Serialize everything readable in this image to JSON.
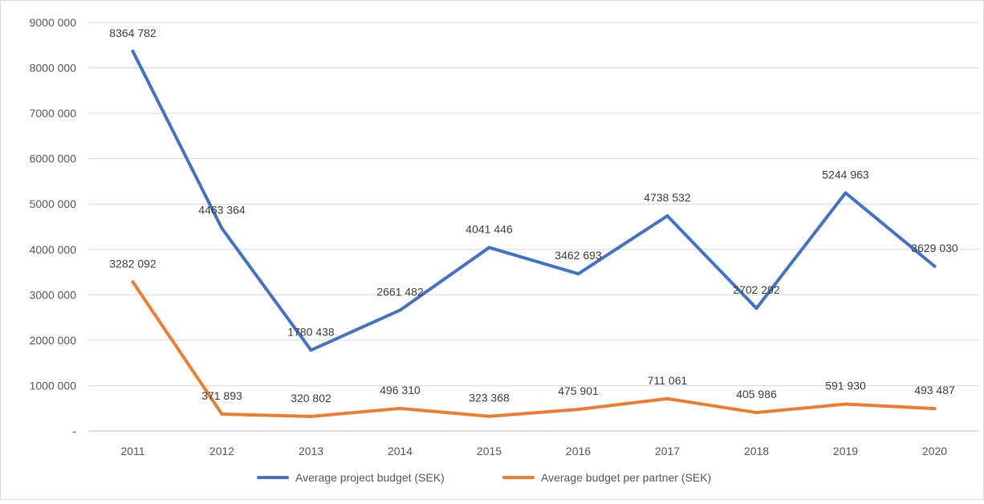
{
  "chart_data": {
    "type": "line",
    "title": "",
    "xlabel": "",
    "ylabel": "",
    "categories": [
      "2011",
      "2012",
      "2013",
      "2014",
      "2015",
      "2016",
      "2017",
      "2018",
      "2019",
      "2020"
    ],
    "ylim": [
      0,
      9000000
    ],
    "y_tick_labels": [
      "-",
      "1000 000",
      "2000 000",
      "3000 000",
      "4000 000",
      "5000 000",
      "6000 000",
      "7000 000",
      "8000 000",
      "9000 000"
    ],
    "grid": "horizontal",
    "legend_position": "bottom",
    "series": [
      {
        "name": "Average project budget (SEK)",
        "color": "#4472C4",
        "values": [
          8364782,
          4463364,
          1780438,
          2661482,
          4041446,
          3462693,
          4738532,
          2702292,
          5244963,
          3629030
        ],
        "labels": [
          "8364 782",
          "4463 364",
          "1780 438",
          "2661 482",
          "4041 446",
          "3462 693",
          "4738 532",
          "2702 292",
          "5244 963",
          "3629 030"
        ]
      },
      {
        "name": "Average budget per partner (SEK)",
        "color": "#ED7D31",
        "values": [
          3282092,
          371893,
          320802,
          496310,
          323368,
          475901,
          711061,
          405986,
          591930,
          493487
        ],
        "labels": [
          "3282 092",
          "371 893",
          "320 802",
          "496 310",
          "323 368",
          "475 901",
          "711 061",
          "405 986",
          "591 930",
          "493 487"
        ]
      }
    ]
  }
}
